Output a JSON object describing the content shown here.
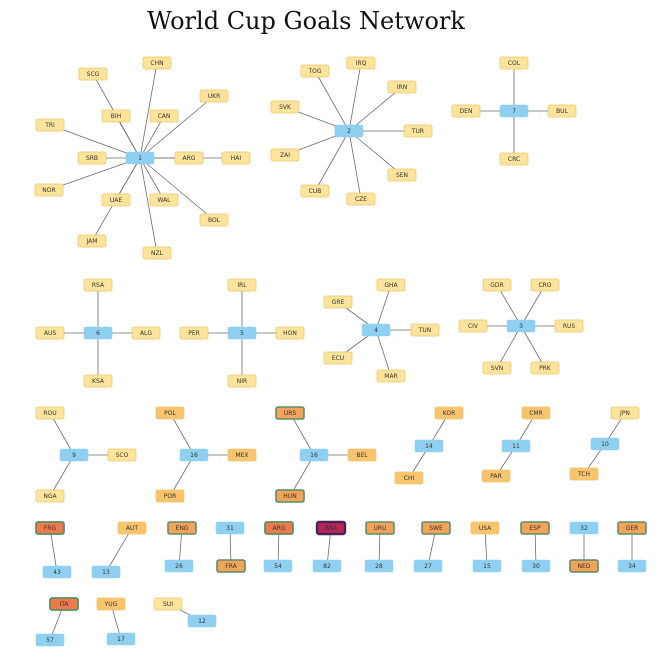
{
  "title": "World Cup Goals Network",
  "colors": {
    "goal_node": "#8fd0f0",
    "team_pale": "#fde49c",
    "team_mid": "#f9c46e",
    "team_orange": "#f3a35a",
    "team_red": "#ef7a4e",
    "team_darkred": "#b5265a",
    "border_yellow": "#e9c66a",
    "border_green": "#5b8f66",
    "border_dark": "#4a2454",
    "edge": "#6e6e6e"
  },
  "nodes": [
    {
      "id": "n1",
      "kind": "goal",
      "label": "1"
    },
    {
      "id": "t_chn",
      "kind": "team",
      "label": "CHN",
      "shade": "pale"
    },
    {
      "id": "t_scg",
      "kind": "team",
      "label": "SCG",
      "shade": "pale"
    },
    {
      "id": "t_ukr",
      "kind": "team",
      "label": "UKR",
      "shade": "pale"
    },
    {
      "id": "t_bih",
      "kind": "team",
      "label": "BIH",
      "shade": "pale"
    },
    {
      "id": "t_can",
      "kind": "team",
      "label": "CAN",
      "shade": "pale"
    },
    {
      "id": "t_tri",
      "kind": "team",
      "label": "TRI",
      "shade": "pale"
    },
    {
      "id": "t_srb",
      "kind": "team",
      "label": "SRB",
      "shade": "pale"
    },
    {
      "id": "t_arg1",
      "kind": "team",
      "label": "ARG",
      "shade": "pale"
    },
    {
      "id": "t_hai",
      "kind": "team",
      "label": "HAI",
      "shade": "pale"
    },
    {
      "id": "t_nor",
      "kind": "team",
      "label": "NOR",
      "shade": "pale"
    },
    {
      "id": "t_uae",
      "kind": "team",
      "label": "UAE",
      "shade": "pale"
    },
    {
      "id": "t_wal",
      "kind": "team",
      "label": "WAL",
      "shade": "pale"
    },
    {
      "id": "t_bol",
      "kind": "team",
      "label": "BOL",
      "shade": "pale"
    },
    {
      "id": "t_jam",
      "kind": "team",
      "label": "JAM",
      "shade": "pale"
    },
    {
      "id": "t_nzl",
      "kind": "team",
      "label": "NZL",
      "shade": "pale"
    },
    {
      "id": "n2",
      "kind": "goal",
      "label": "2"
    },
    {
      "id": "t_tog",
      "kind": "team",
      "label": "TOG",
      "shade": "pale"
    },
    {
      "id": "t_irq",
      "kind": "team",
      "label": "IRQ",
      "shade": "pale"
    },
    {
      "id": "t_irn",
      "kind": "team",
      "label": "IRN",
      "shade": "pale"
    },
    {
      "id": "t_svk",
      "kind": "team",
      "label": "SVK",
      "shade": "pale"
    },
    {
      "id": "t_tur",
      "kind": "team",
      "label": "TUR",
      "shade": "pale"
    },
    {
      "id": "t_zai",
      "kind": "team",
      "label": "ZAI",
      "shade": "pale"
    },
    {
      "id": "t_sen",
      "kind": "team",
      "label": "SEN",
      "shade": "pale"
    },
    {
      "id": "t_cub",
      "kind": "team",
      "label": "CUB",
      "shade": "pale"
    },
    {
      "id": "t_cze",
      "kind": "team",
      "label": "CZE",
      "shade": "pale"
    },
    {
      "id": "n7",
      "kind": "goal",
      "label": "7"
    },
    {
      "id": "t_col",
      "kind": "team",
      "label": "COL",
      "shade": "pale"
    },
    {
      "id": "t_den",
      "kind": "team",
      "label": "DEN",
      "shade": "pale"
    },
    {
      "id": "t_bul",
      "kind": "team",
      "label": "BUL",
      "shade": "pale"
    },
    {
      "id": "t_crc",
      "kind": "team",
      "label": "CRC",
      "shade": "pale"
    },
    {
      "id": "n6",
      "kind": "goal",
      "label": "6"
    },
    {
      "id": "t_rsa",
      "kind": "team",
      "label": "RSA",
      "shade": "pale"
    },
    {
      "id": "t_aus",
      "kind": "team",
      "label": "AUS",
      "shade": "pale"
    },
    {
      "id": "t_alg",
      "kind": "team",
      "label": "ALG",
      "shade": "pale"
    },
    {
      "id": "t_ksa",
      "kind": "team",
      "label": "KSA",
      "shade": "pale"
    },
    {
      "id": "n5",
      "kind": "goal",
      "label": "5"
    },
    {
      "id": "t_irl",
      "kind": "team",
      "label": "IRL",
      "shade": "pale"
    },
    {
      "id": "t_per",
      "kind": "team",
      "label": "PER",
      "shade": "pale"
    },
    {
      "id": "t_hon",
      "kind": "team",
      "label": "HON",
      "shade": "pale"
    },
    {
      "id": "t_nir",
      "kind": "team",
      "label": "NIR",
      "shade": "pale"
    },
    {
      "id": "n4",
      "kind": "goal",
      "label": "4"
    },
    {
      "id": "t_gha",
      "kind": "team",
      "label": "GHA",
      "shade": "pale"
    },
    {
      "id": "t_gre",
      "kind": "team",
      "label": "GRE",
      "shade": "pale"
    },
    {
      "id": "t_tun",
      "kind": "team",
      "label": "TUN",
      "shade": "pale"
    },
    {
      "id": "t_ecu",
      "kind": "team",
      "label": "ECU",
      "shade": "pale"
    },
    {
      "id": "t_mar",
      "kind": "team",
      "label": "MAR",
      "shade": "pale"
    },
    {
      "id": "n3",
      "kind": "goal",
      "label": "3"
    },
    {
      "id": "t_gdr",
      "kind": "team",
      "label": "GDR",
      "shade": "pale"
    },
    {
      "id": "t_cro",
      "kind": "team",
      "label": "CRO",
      "shade": "pale"
    },
    {
      "id": "t_civ",
      "kind": "team",
      "label": "CIV",
      "shade": "pale"
    },
    {
      "id": "t_rus",
      "kind": "team",
      "label": "RUS",
      "shade": "pale"
    },
    {
      "id": "t_svn",
      "kind": "team",
      "label": "SVN",
      "shade": "pale"
    },
    {
      "id": "t_prk",
      "kind": "team",
      "label": "PRK",
      "shade": "pale"
    },
    {
      "id": "n9",
      "kind": "goal",
      "label": "9"
    },
    {
      "id": "t_rou",
      "kind": "team",
      "label": "ROU",
      "shade": "pale"
    },
    {
      "id": "t_sco",
      "kind": "team",
      "label": "SCO",
      "shade": "pale"
    },
    {
      "id": "t_nga",
      "kind": "team",
      "label": "NGA",
      "shade": "pale"
    },
    {
      "id": "n16a",
      "kind": "goal",
      "label": "16"
    },
    {
      "id": "t_pol",
      "kind": "team",
      "label": "POL",
      "shade": "mid"
    },
    {
      "id": "t_mex",
      "kind": "team",
      "label": "MEX",
      "shade": "mid"
    },
    {
      "id": "t_por",
      "kind": "team",
      "label": "POR",
      "shade": "mid"
    },
    {
      "id": "n16b",
      "kind": "goal",
      "label": "16"
    },
    {
      "id": "t_urs",
      "kind": "team",
      "label": "URS",
      "shade": "orange"
    },
    {
      "id": "t_bel",
      "kind": "team",
      "label": "BEL",
      "shade": "mid"
    },
    {
      "id": "t_hun",
      "kind": "team",
      "label": "HUN",
      "shade": "orange"
    },
    {
      "id": "n14",
      "kind": "goal",
      "label": "14"
    },
    {
      "id": "t_kor",
      "kind": "team",
      "label": "KOR",
      "shade": "mid"
    },
    {
      "id": "t_chi",
      "kind": "team",
      "label": "CHI",
      "shade": "mid"
    },
    {
      "id": "n11",
      "kind": "goal",
      "label": "11"
    },
    {
      "id": "t_cmr",
      "kind": "team",
      "label": "CMR",
      "shade": "mid"
    },
    {
      "id": "t_par",
      "kind": "team",
      "label": "PAR",
      "shade": "mid"
    },
    {
      "id": "n10",
      "kind": "goal",
      "label": "10"
    },
    {
      "id": "t_jpn",
      "kind": "team",
      "label": "JPN",
      "shade": "pale"
    },
    {
      "id": "t_tch",
      "kind": "team",
      "label": "TCH",
      "shade": "mid"
    },
    {
      "id": "t_fra",
      "kind": "team",
      "label": "FRG",
      "shade": "red"
    },
    {
      "id": "n43",
      "kind": "goal",
      "label": "43"
    },
    {
      "id": "t_aut",
      "kind": "team",
      "label": "AUT",
      "shade": "mid"
    },
    {
      "id": "n13",
      "kind": "goal",
      "label": "13"
    },
    {
      "id": "t_eng",
      "kind": "team",
      "label": "ENG",
      "shade": "orange"
    },
    {
      "id": "n26",
      "kind": "goal",
      "label": "26"
    },
    {
      "id": "n31",
      "kind": "goal",
      "label": "31"
    },
    {
      "id": "t_fra2",
      "kind": "team",
      "label": "FRA",
      "shade": "orange"
    },
    {
      "id": "t_arg2",
      "kind": "team",
      "label": "ARG",
      "shade": "red"
    },
    {
      "id": "n54",
      "kind": "goal",
      "label": "54"
    },
    {
      "id": "t_bra",
      "kind": "team",
      "label": "BRA",
      "shade": "darkred"
    },
    {
      "id": "n82",
      "kind": "goal",
      "label": "82"
    },
    {
      "id": "t_uru",
      "kind": "team",
      "label": "URU",
      "shade": "orange"
    },
    {
      "id": "n28",
      "kind": "goal",
      "label": "28"
    },
    {
      "id": "t_swe",
      "kind": "team",
      "label": "SWE",
      "shade": "orange"
    },
    {
      "id": "n27",
      "kind": "goal",
      "label": "27"
    },
    {
      "id": "t_usa",
      "kind": "team",
      "label": "USA",
      "shade": "mid"
    },
    {
      "id": "n15",
      "kind": "goal",
      "label": "15"
    },
    {
      "id": "t_esp",
      "kind": "team",
      "label": "ESP",
      "shade": "orange"
    },
    {
      "id": "n30",
      "kind": "goal",
      "label": "30"
    },
    {
      "id": "n32",
      "kind": "goal",
      "label": "32"
    },
    {
      "id": "t_ned",
      "kind": "team",
      "label": "NED",
      "shade": "orange"
    },
    {
      "id": "t_ger",
      "kind": "team",
      "label": "GER",
      "shade": "orange"
    },
    {
      "id": "n34",
      "kind": "goal",
      "label": "34"
    },
    {
      "id": "t_ita",
      "kind": "team",
      "label": "ITA",
      "shade": "red"
    },
    {
      "id": "n57",
      "kind": "goal",
      "label": "57"
    },
    {
      "id": "t_yug",
      "kind": "team",
      "label": "YUG",
      "shade": "mid"
    },
    {
      "id": "n17",
      "kind": "goal",
      "label": "17"
    },
    {
      "id": "t_sui",
      "kind": "team",
      "label": "SUI",
      "shade": "pale"
    },
    {
      "id": "n12",
      "kind": "goal",
      "label": "12"
    }
  ],
  "edges": [
    [
      "n1",
      "t_chn"
    ],
    [
      "n1",
      "t_scg"
    ],
    [
      "n1",
      "t_ukr"
    ],
    [
      "n1",
      "t_bih"
    ],
    [
      "n1",
      "t_can"
    ],
    [
      "n1",
      "t_tri"
    ],
    [
      "n1",
      "t_srb"
    ],
    [
      "n1",
      "t_arg1"
    ],
    [
      "n1",
      "t_hai"
    ],
    [
      "n1",
      "t_nor"
    ],
    [
      "n1",
      "t_uae"
    ],
    [
      "n1",
      "t_wal"
    ],
    [
      "n1",
      "t_bol"
    ],
    [
      "n1",
      "t_jam"
    ],
    [
      "n1",
      "t_nzl"
    ],
    [
      "n2",
      "t_tog"
    ],
    [
      "n2",
      "t_irq"
    ],
    [
      "n2",
      "t_irn"
    ],
    [
      "n2",
      "t_svk"
    ],
    [
      "n2",
      "t_tur"
    ],
    [
      "n2",
      "t_zai"
    ],
    [
      "n2",
      "t_sen"
    ],
    [
      "n2",
      "t_cub"
    ],
    [
      "n2",
      "t_cze"
    ],
    [
      "n7",
      "t_col"
    ],
    [
      "n7",
      "t_den"
    ],
    [
      "n7",
      "t_bul"
    ],
    [
      "n7",
      "t_crc"
    ],
    [
      "n6",
      "t_rsa"
    ],
    [
      "n6",
      "t_aus"
    ],
    [
      "n6",
      "t_alg"
    ],
    [
      "n6",
      "t_ksa"
    ],
    [
      "n5",
      "t_irl"
    ],
    [
      "n5",
      "t_per"
    ],
    [
      "n5",
      "t_hon"
    ],
    [
      "n5",
      "t_nir"
    ],
    [
      "n4",
      "t_gha"
    ],
    [
      "n4",
      "t_gre"
    ],
    [
      "n4",
      "t_tun"
    ],
    [
      "n4",
      "t_ecu"
    ],
    [
      "n4",
      "t_mar"
    ],
    [
      "n3",
      "t_gdr"
    ],
    [
      "n3",
      "t_cro"
    ],
    [
      "n3",
      "t_civ"
    ],
    [
      "n3",
      "t_rus"
    ],
    [
      "n3",
      "t_svn"
    ],
    [
      "n3",
      "t_prk"
    ],
    [
      "n9",
      "t_rou"
    ],
    [
      "n9",
      "t_sco"
    ],
    [
      "n9",
      "t_nga"
    ],
    [
      "n16a",
      "t_pol"
    ],
    [
      "n16a",
      "t_mex"
    ],
    [
      "n16a",
      "t_por"
    ],
    [
      "n16b",
      "t_urs"
    ],
    [
      "n16b",
      "t_bel"
    ],
    [
      "n16b",
      "t_hun"
    ],
    [
      "n14",
      "t_kor"
    ],
    [
      "n14",
      "t_chi"
    ],
    [
      "n11",
      "t_cmr"
    ],
    [
      "n11",
      "t_par"
    ],
    [
      "n10",
      "t_jpn"
    ],
    [
      "n10",
      "t_tch"
    ],
    [
      "t_fra",
      "n43"
    ],
    [
      "t_aut",
      "n13"
    ],
    [
      "t_eng",
      "n26"
    ],
    [
      "n31",
      "t_fra2"
    ],
    [
      "t_arg2",
      "n54"
    ],
    [
      "t_bra",
      "n82"
    ],
    [
      "t_uru",
      "n28"
    ],
    [
      "t_swe",
      "n27"
    ],
    [
      "t_usa",
      "n15"
    ],
    [
      "t_esp",
      "n30"
    ],
    [
      "n32",
      "t_ned"
    ],
    [
      "t_ger",
      "n34"
    ],
    [
      "t_ita",
      "n57"
    ],
    [
      "t_yug",
      "n17"
    ],
    [
      "t_sui",
      "n12"
    ]
  ]
}
